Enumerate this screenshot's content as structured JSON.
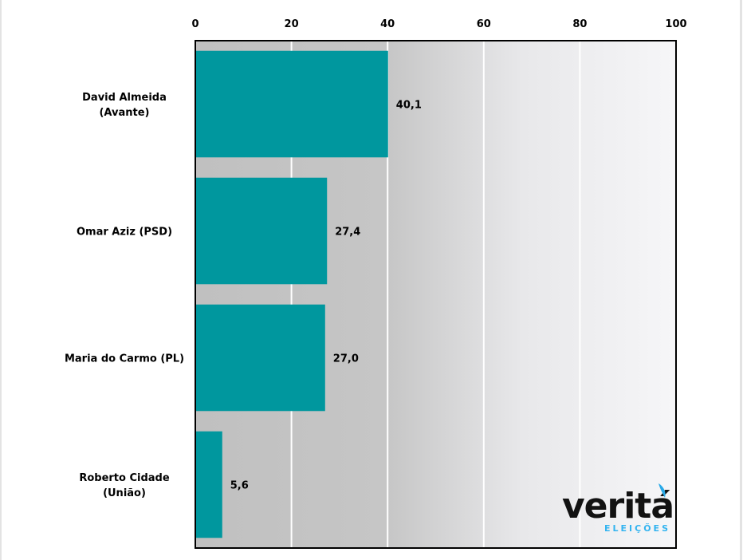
{
  "chart_data": {
    "type": "bar",
    "orientation": "horizontal",
    "categories": [
      [
        "David Almeida",
        "(Avante)"
      ],
      [
        "Omar Aziz (PSD)"
      ],
      [
        "Maria do Carmo (PL)"
      ],
      [
        "Roberto Cidade",
        "(União)"
      ]
    ],
    "values": [
      40.1,
      27.4,
      27.0,
      5.6
    ],
    "value_labels": [
      "40,1",
      "27,4",
      "27,0",
      "5,6"
    ],
    "xlim": [
      0,
      100
    ],
    "xticks": [
      0,
      20,
      40,
      60,
      80,
      100
    ],
    "xtick_labels": [
      "0",
      "20",
      "40",
      "60",
      "80",
      "100"
    ],
    "axis_position": "top",
    "grid": true,
    "bar_color": "#00979e"
  },
  "logo": {
    "name": "verita-eleicoes-logo",
    "text": "veritá",
    "subtext": "ELEIÇÕES"
  }
}
